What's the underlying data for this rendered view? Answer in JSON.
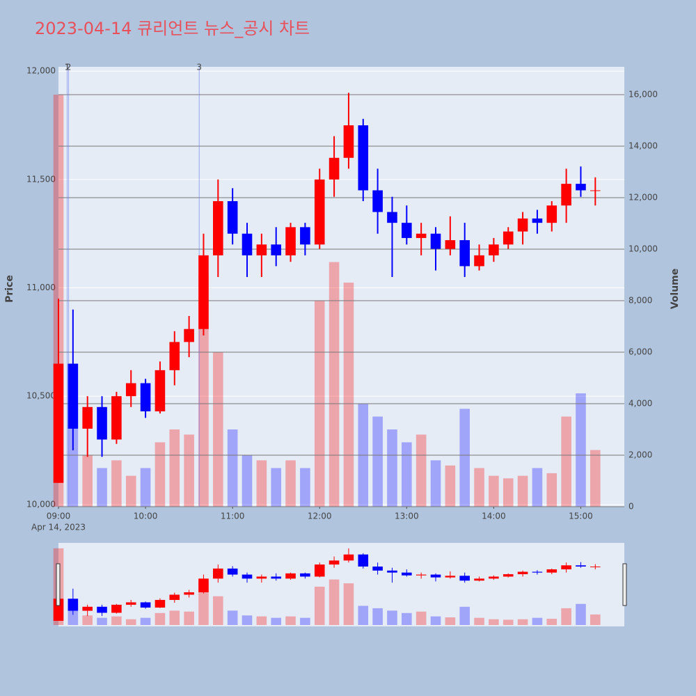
{
  "chart_data": {
    "type": "candlestick",
    "title": "2023-04-14 큐리언트 뉴스_공시 차트",
    "y_title": "Price",
    "y2_title": "Volume",
    "x_date_label": "Apr 14, 2023",
    "increasing_color": "#ff0000",
    "decreasing_color": "#0000ff",
    "x": [
      "2023-04-14 09:00",
      "2023-04-14 09:10",
      "2023-04-14 09:20",
      "2023-04-14 09:30",
      "2023-04-14 09:40",
      "2023-04-14 09:50",
      "2023-04-14 10:00",
      "2023-04-14 10:10",
      "2023-04-14 10:20",
      "2023-04-14 10:30",
      "2023-04-14 10:40",
      "2023-04-14 10:50",
      "2023-04-14 11:00",
      "2023-04-14 11:10",
      "2023-04-14 11:20",
      "2023-04-14 11:30",
      "2023-04-14 11:40",
      "2023-04-14 11:50",
      "2023-04-14 12:00",
      "2023-04-14 12:10",
      "2023-04-14 12:20",
      "2023-04-14 12:30",
      "2023-04-14 12:40",
      "2023-04-14 12:50",
      "2023-04-14 13:00",
      "2023-04-14 13:10",
      "2023-04-14 13:20",
      "2023-04-14 13:30",
      "2023-04-14 13:40",
      "2023-04-14 13:50",
      "2023-04-14 14:00",
      "2023-04-14 14:10",
      "2023-04-14 14:20",
      "2023-04-14 14:30",
      "2023-04-14 14:40",
      "2023-04-14 14:50",
      "2023-04-14 15:00",
      "2023-04-14 15:10"
    ],
    "open": [
      10100,
      10650,
      10350,
      10450,
      10300,
      10500,
      10560,
      10430,
      10620,
      10750,
      10810,
      11150,
      11400,
      11250,
      11150,
      11200,
      11150,
      11280,
      11200,
      11500,
      11600,
      11750,
      11450,
      11350,
      11300,
      11230,
      11250,
      11180,
      11220,
      11100,
      11150,
      11200,
      11260,
      11320,
      11300,
      11380,
      11480,
      11450
    ],
    "high": [
      10950,
      10900,
      10500,
      10500,
      10520,
      10620,
      10580,
      10660,
      10800,
      10870,
      11250,
      11500,
      11460,
      11300,
      11250,
      11280,
      11300,
      11300,
      11550,
      11700,
      11900,
      11780,
      11550,
      11420,
      11380,
      11300,
      11280,
      11330,
      11300,
      11200,
      11230,
      11280,
      11350,
      11360,
      11400,
      11550,
      11560,
      11510
    ],
    "low": [
      10100,
      10250,
      10220,
      10220,
      10280,
      10450,
      10400,
      10420,
      10550,
      10680,
      10780,
      11050,
      11200,
      11050,
      11050,
      11100,
      11120,
      11150,
      11180,
      11420,
      11550,
      11400,
      11250,
      11050,
      11200,
      11150,
      11080,
      11150,
      11050,
      11080,
      11120,
      11180,
      11200,
      11250,
      11260,
      11300,
      11420,
      11380
    ],
    "close": [
      10650,
      10350,
      10450,
      10300,
      10500,
      10560,
      10430,
      10620,
      10750,
      10810,
      11150,
      11400,
      11250,
      11150,
      11200,
      11150,
      11280,
      11200,
      11500,
      11600,
      11750,
      11450,
      11350,
      11300,
      11230,
      11250,
      11180,
      11220,
      11100,
      11150,
      11200,
      11260,
      11320,
      11300,
      11380,
      11480,
      11450,
      11450
    ],
    "volume": [
      16000,
      4000,
      2000,
      1500,
      1800,
      1200,
      1500,
      2500,
      3000,
      2800,
      9000,
      6000,
      3000,
      2000,
      1800,
      1500,
      1800,
      1500,
      8000,
      9500,
      8700,
      4000,
      3500,
      3000,
      2500,
      2800,
      1800,
      1600,
      3800,
      1500,
      1200,
      1100,
      1200,
      1500,
      1300,
      3500,
      4400,
      2200
    ],
    "xlim": [
      "2023-04-14 09:00",
      "2023-04-14 15:30"
    ],
    "xticks": [
      {
        "value": "2023-04-14 09:00",
        "label": "09:00"
      },
      {
        "value": "2023-04-14 10:00",
        "label": "10:00"
      },
      {
        "value": "2023-04-14 11:00",
        "label": "11:00"
      },
      {
        "value": "2023-04-14 12:00",
        "label": "12:00"
      },
      {
        "value": "2023-04-14 13:00",
        "label": "13:00"
      },
      {
        "value": "2023-04-14 14:00",
        "label": "14:00"
      },
      {
        "value": "2023-04-14 15:00",
        "label": "15:00"
      }
    ],
    "ylim": [
      9990,
      12020
    ],
    "yticks": [
      {
        "value": 10000,
        "label": "10,000"
      },
      {
        "value": 10500,
        "label": "10,500"
      },
      {
        "value": 11000,
        "label": "11,000"
      },
      {
        "value": 11500,
        "label": "11,500"
      },
      {
        "value": 12000,
        "label": "12,000"
      }
    ],
    "y2lim": [
      0,
      17080
    ],
    "y2ticks": [
      0,
      {
        "value": 2000,
        "label": "2,000"
      },
      {
        "value": 4000,
        "label": "4,000"
      },
      {
        "value": 6000,
        "label": "6,000"
      },
      {
        "value": 8000,
        "label": "8,000"
      },
      {
        "value": 10000,
        "label": "10,000"
      },
      {
        "value": 12000,
        "label": "12,000"
      },
      {
        "value": 14000,
        "label": "14,000"
      },
      {
        "value": 16000,
        "label": "16,000"
      }
    ],
    "annotations": [
      {
        "x": "2023-04-14 09:06",
        "text": "1"
      },
      {
        "x": "2023-04-14 09:07",
        "text": "2"
      },
      {
        "x": "2023-04-14 10:37",
        "text": "3"
      }
    ],
    "range_slider": true
  }
}
